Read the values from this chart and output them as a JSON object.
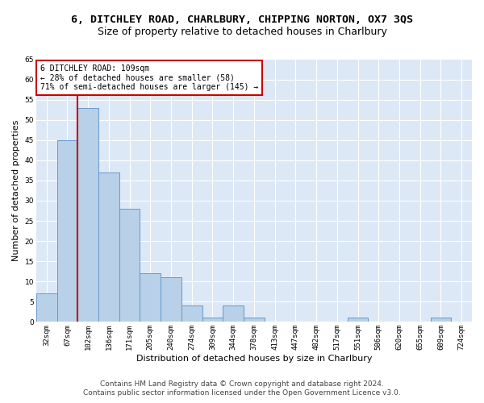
{
  "title": "6, DITCHLEY ROAD, CHARLBURY, CHIPPING NORTON, OX7 3QS",
  "subtitle": "Size of property relative to detached houses in Charlbury",
  "xlabel": "Distribution of detached houses by size in Charlbury",
  "ylabel": "Number of detached properties",
  "bar_labels": [
    "32sqm",
    "67sqm",
    "102sqm",
    "136sqm",
    "171sqm",
    "205sqm",
    "240sqm",
    "274sqm",
    "309sqm",
    "344sqm",
    "378sqm",
    "413sqm",
    "447sqm",
    "482sqm",
    "517sqm",
    "551sqm",
    "586sqm",
    "620sqm",
    "655sqm",
    "689sqm",
    "724sqm"
  ],
  "bar_values": [
    7,
    45,
    53,
    37,
    28,
    12,
    11,
    4,
    1,
    4,
    1,
    0,
    0,
    0,
    0,
    1,
    0,
    0,
    0,
    1,
    0
  ],
  "bar_color": "#b8d0e8",
  "bar_edge_color": "#6699cc",
  "vline_x": 1.5,
  "vline_color": "#cc0000",
  "annotation_text": "6 DITCHLEY ROAD: 109sqm\n← 28% of detached houses are smaller (58)\n71% of semi-detached houses are larger (145) →",
  "annotation_box_color": "#ffffff",
  "annotation_box_edge": "#cc0000",
  "ylim": [
    0,
    65
  ],
  "yticks": [
    0,
    5,
    10,
    15,
    20,
    25,
    30,
    35,
    40,
    45,
    50,
    55,
    60,
    65
  ],
  "footer1": "Contains HM Land Registry data © Crown copyright and database right 2024.",
  "footer2": "Contains public sector information licensed under the Open Government Licence v3.0.",
  "plot_bg_color": "#dce8f5",
  "fig_bg_color": "#ffffff",
  "grid_color": "#ffffff",
  "title_fontsize": 9.5,
  "subtitle_fontsize": 9,
  "label_fontsize": 8,
  "tick_fontsize": 6.5,
  "annot_fontsize": 7,
  "footer_fontsize": 6.5
}
